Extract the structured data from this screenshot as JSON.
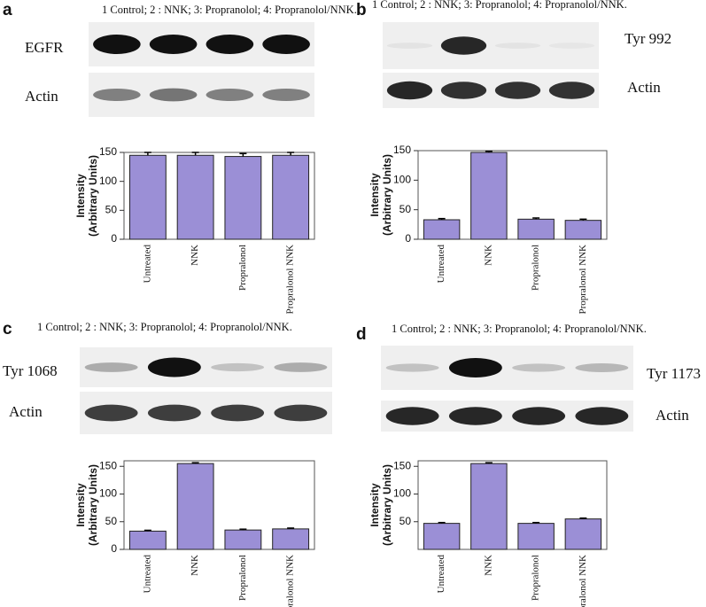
{
  "chart_data": [
    {
      "type": "bar",
      "panel": "a",
      "caption": "1 Control; 2 : NNK; 3: Propranolol; 4: Propranolol/NNK.",
      "blots": [
        {
          "label": "EGFR"
        },
        {
          "label": "Actin"
        }
      ],
      "ylabel": "Intensity",
      "ylabel2": "(Arbitrary Units)",
      "categories": [
        "Untreated",
        "NNK",
        "Propralonol",
        "Propralonol NNK"
      ],
      "values": [
        145,
        145,
        143,
        145
      ],
      "errors": [
        5,
        5,
        5,
        5
      ],
      "color": "#9b8fd6",
      "ylim": [
        0,
        150
      ],
      "yticks": [
        0,
        50,
        100,
        150
      ]
    },
    {
      "type": "bar",
      "panel": "b",
      "caption": "1 Control; 2 : NNK; 3: Propranolol; 4: Propranolol/NNK.",
      "blots": [
        {
          "label": "Tyr 992"
        },
        {
          "label": "Actin"
        }
      ],
      "ylabel": "Intensity",
      "ylabel2": "(Arbitrary Units)",
      "categories": [
        "Untreated",
        "NNK",
        "Propralonol",
        "Propralonol NNK"
      ],
      "values": [
        33,
        147,
        34,
        32
      ],
      "errors": [
        2,
        2,
        2,
        2
      ],
      "color": "#9b8fd6",
      "ylim": [
        0,
        150
      ],
      "yticks": [
        0,
        50,
        100,
        150
      ]
    },
    {
      "type": "bar",
      "panel": "c",
      "caption": "1 Control; 2 : NNK; 3: Propranolol; 4: Propranolol/NNK.",
      "blots": [
        {
          "label": "Tyr 1068"
        },
        {
          "label": "Actin"
        }
      ],
      "ylabel": "Intensity",
      "ylabel2": "(Arbitrary Units)",
      "categories": [
        "Untreated",
        "NNK",
        "Propralonol",
        "Propralonol NNK"
      ],
      "values": [
        33,
        155,
        35,
        37
      ],
      "errors": [
        1.5,
        1.5,
        1.5,
        1.5
      ],
      "color": "#9b8fd6",
      "ylim": [
        0,
        160
      ],
      "yticks": [
        0,
        50,
        100,
        150
      ]
    },
    {
      "type": "bar",
      "panel": "d",
      "caption": "1 Control; 2 : NNK; 3: Propranolol; 4: Propranolol/NNK.",
      "blots": [
        {
          "label": "Tyr 1173"
        },
        {
          "label": "Actin"
        }
      ],
      "ylabel": "Intensity",
      "ylabel2": "(Arbitrary Units)",
      "categories": [
        "Untreated",
        "NNK",
        "Propralonol",
        "Propralonol NNK"
      ],
      "values": [
        47,
        155,
        47,
        55
      ],
      "errors": [
        1.5,
        1.5,
        1.5,
        1.5
      ],
      "color": "#9b8fd6",
      "ylim": [
        0,
        160
      ],
      "yticks": [
        50,
        100,
        150
      ]
    }
  ]
}
